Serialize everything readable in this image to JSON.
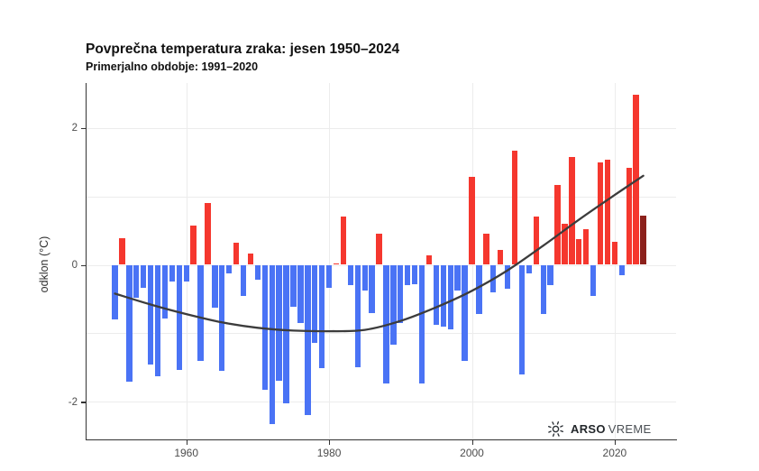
{
  "header": {
    "title": "Povprečna temperatura zraka: jesen 1950–2024",
    "subtitle": "Primerjalno obdobje: 1991–2020"
  },
  "logo": {
    "icon": "sun-icon",
    "brand_bold": "ARSO",
    "brand_regular": "VREME"
  },
  "chart_data": {
    "type": "bar",
    "title": "Povprečna temperatura zraka: jesen 1950–2024",
    "subtitle": "Primerjalno obdobje: 1991–2020",
    "xlabel": "",
    "ylabel": "odklon (°C)",
    "ylim": [
      -2.6,
      2.65
    ],
    "grid": true,
    "legend_position": "none",
    "yticks": [
      {
        "value": 2,
        "label": "2"
      },
      {
        "value": 0,
        "label": "0"
      },
      {
        "value": -2,
        "label": "-2"
      }
    ],
    "gridlines_y": [
      2,
      1,
      0,
      -1,
      -2
    ],
    "xticks": [
      {
        "value": 1960,
        "label": "1960"
      },
      {
        "value": 1980,
        "label": "1980"
      },
      {
        "value": 2000,
        "label": "2000"
      },
      {
        "value": 2020,
        "label": "2020"
      }
    ],
    "colors": {
      "positive": "#f5372e",
      "negative": "#4a73f5",
      "latest": "#8c211c",
      "trend": "#3c3c3c"
    },
    "latest_year": 2024,
    "categories": [
      1950,
      1951,
      1952,
      1953,
      1954,
      1955,
      1956,
      1957,
      1958,
      1959,
      1960,
      1961,
      1962,
      1963,
      1964,
      1965,
      1966,
      1967,
      1968,
      1969,
      1970,
      1971,
      1972,
      1973,
      1974,
      1975,
      1976,
      1977,
      1978,
      1979,
      1980,
      1981,
      1982,
      1983,
      1984,
      1985,
      1986,
      1987,
      1988,
      1989,
      1990,
      1991,
      1992,
      1993,
      1994,
      1995,
      1996,
      1997,
      1998,
      1999,
      2000,
      2001,
      2002,
      2003,
      2004,
      2005,
      2006,
      2007,
      2008,
      2009,
      2010,
      2011,
      2012,
      2013,
      2014,
      2015,
      2016,
      2017,
      2018,
      2019,
      2020,
      2021,
      2022,
      2023,
      2024
    ],
    "values": [
      -0.8,
      0.39,
      -1.7,
      -0.48,
      -0.34,
      -1.45,
      -1.63,
      -0.78,
      -0.25,
      -1.53,
      -0.24,
      0.57,
      -1.4,
      0.9,
      -0.63,
      -1.55,
      -0.13,
      0.32,
      -0.46,
      0.16,
      -0.22,
      -1.82,
      -2.32,
      -1.69,
      -2.02,
      -0.61,
      -0.85,
      -2.19,
      -1.14,
      -1.51,
      -0.33,
      0.02,
      0.7,
      -0.3,
      -1.49,
      -0.37,
      -0.7,
      0.45,
      -1.73,
      -1.16,
      -0.85,
      -0.3,
      -0.28,
      -1.73,
      0.14,
      -0.88,
      -0.9,
      -0.94,
      -0.37,
      -1.4,
      1.29,
      -0.72,
      0.45,
      -0.4,
      0.22,
      -0.35,
      1.67,
      -1.6,
      -0.12,
      0.7,
      -0.72,
      -0.3,
      1.16,
      0.6,
      1.57,
      0.38,
      0.52,
      -0.46,
      1.49,
      1.54,
      0.33,
      -0.15,
      1.41,
      2.48,
      0.72
    ],
    "trend_smooth": {
      "description": "smoothed long-term trend line",
      "points": [
        {
          "year": 1950,
          "value": -0.42
        },
        {
          "year": 1955,
          "value": -0.58
        },
        {
          "year": 1960,
          "value": -0.72
        },
        {
          "year": 1965,
          "value": -0.84
        },
        {
          "year": 1970,
          "value": -0.92
        },
        {
          "year": 1975,
          "value": -0.96
        },
        {
          "year": 1980,
          "value": -0.97
        },
        {
          "year": 1985,
          "value": -0.95
        },
        {
          "year": 1990,
          "value": -0.82
        },
        {
          "year": 1995,
          "value": -0.62
        },
        {
          "year": 2000,
          "value": -0.38
        },
        {
          "year": 2005,
          "value": -0.08
        },
        {
          "year": 2010,
          "value": 0.28
        },
        {
          "year": 2015,
          "value": 0.66
        },
        {
          "year": 2020,
          "value": 1.02
        },
        {
          "year": 2024,
          "value": 1.3
        }
      ]
    }
  }
}
